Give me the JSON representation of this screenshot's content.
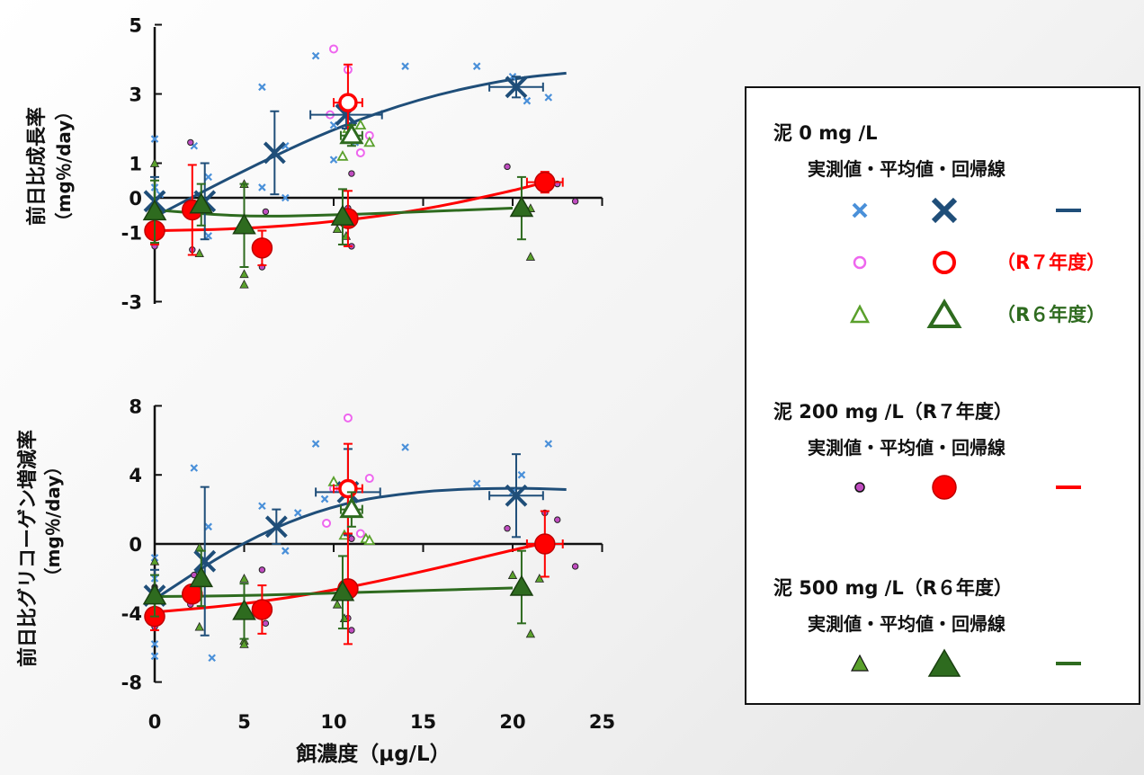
{
  "colors": {
    "blue": "#1f4e79",
    "blue_light": "#4a90d9",
    "red": "#ff0000",
    "red_dark": "#c00000",
    "pink": "#ee66ee",
    "green": "#2e6b1f",
    "green_light": "#5aa02c",
    "purple": "#c04cc0"
  },
  "chart_data": [
    {
      "type": "scatter",
      "title": "",
      "ylabel": "前日比成長率",
      "ylabel2": "（mg％/day）",
      "xlim": [
        0,
        25
      ],
      "ylim": [
        -3,
        5
      ],
      "yticks": [
        "5",
        "3",
        "1",
        "0",
        "-1",
        "-3"
      ],
      "ytick_values": [
        5,
        3,
        1,
        0,
        -1,
        -3
      ],
      "grid": false,
      "series": [
        {
          "name": "泥 0 mg /L 実測値",
          "marker": "x-small",
          "color": "#4a90d9",
          "points": [
            [
              0,
              1.7
            ],
            [
              0,
              0.3
            ],
            [
              0,
              -0.4
            ],
            [
              0.3,
              0.1
            ],
            [
              2.2,
              1.5
            ],
            [
              3,
              0.6
            ],
            [
              3,
              -1.1
            ],
            [
              6,
              3.2
            ],
            [
              6,
              0.3
            ],
            [
              7.3,
              1.5
            ],
            [
              7.3,
              0
            ],
            [
              9,
              4.1
            ],
            [
              10,
              1.1
            ],
            [
              10,
              2.1
            ],
            [
              11.2,
              1.6
            ],
            [
              14,
              3.8
            ],
            [
              18,
              3.8
            ],
            [
              20,
              3.5
            ],
            [
              20.8,
              2.8
            ],
            [
              22,
              2.9
            ]
          ]
        },
        {
          "name": "泥 0 mg /L 平均値",
          "marker": "x-large",
          "color": "#1f4e79",
          "points": [
            [
              0,
              -0.1
            ],
            [
              2.8,
              -0.1
            ],
            [
              6.7,
              1.3
            ],
            [
              10.7,
              2.4
            ],
            [
              20.2,
              3.2
            ]
          ],
          "xerr": [
            0,
            0,
            0,
            2,
            1.5
          ],
          "yerr": [
            0.7,
            1.1,
            1.2,
            0.4,
            0.3
          ]
        },
        {
          "name": "泥 0 mg /L 回帰線",
          "line": true,
          "color": "#1f4e79",
          "curve": [
            [
              0,
              -0.55
            ],
            [
              5,
              0.8
            ],
            [
              10,
              2
            ],
            [
              15,
              2.9
            ],
            [
              20,
              3.45
            ],
            [
              23,
              3.6
            ]
          ]
        },
        {
          "name": "泥 0 mg /L 実測値 R7",
          "marker": "o-small-open",
          "color": "#ee66ee",
          "points": [
            [
              9.8,
              2.4
            ],
            [
              10,
              4.3
            ],
            [
              10.8,
              3.7
            ],
            [
              11.5,
              1.3
            ],
            [
              12,
              1.8
            ]
          ]
        },
        {
          "name": "泥 0 mg /L 平均値 R7",
          "marker": "o-large-open",
          "color": "#ff0000",
          "points": [
            [
              10.8,
              2.75
            ]
          ],
          "xerr": [
            0.8
          ],
          "yerr": [
            1.1
          ]
        },
        {
          "name": "泥 0 mg /L 実測値 R6",
          "marker": "tri-small-open",
          "color": "#5aa02c",
          "points": [
            [
              10.5,
              1.2
            ],
            [
              10.8,
              2
            ],
            [
              11.5,
              2.1
            ],
            [
              12,
              1.6
            ]
          ]
        },
        {
          "name": "泥 0 mg /L 平均値 R6",
          "marker": "tri-large-open",
          "color": "#2e6b1f",
          "points": [
            [
              11,
              1.8
            ]
          ],
          "xerr": [
            0.6
          ],
          "yerr": [
            0.3
          ]
        },
        {
          "name": "泥 200 mg /L 実測値",
          "marker": "dot-small",
          "color": "#c04cc0",
          "points": [
            [
              0,
              -1.4
            ],
            [
              0,
              -0.8
            ],
            [
              2,
              1.6
            ],
            [
              2.1,
              -1.5
            ],
            [
              6,
              -1.6
            ],
            [
              6,
              -2
            ],
            [
              6.2,
              -0.4
            ],
            [
              10.8,
              -0.3
            ],
            [
              11,
              0.7
            ],
            [
              11,
              -1.4
            ],
            [
              19.7,
              0.9
            ],
            [
              21.8,
              0.4
            ],
            [
              22.5,
              0.4
            ],
            [
              23.5,
              -0.1
            ]
          ]
        },
        {
          "name": "泥 200 mg /L 平均値",
          "marker": "dot-large",
          "color": "#ff0000",
          "points": [
            [
              0,
              -0.95
            ],
            [
              2.1,
              -0.35
            ],
            [
              6,
              -1.45
            ],
            [
              10.8,
              -0.6
            ],
            [
              21.8,
              0.45
            ]
          ],
          "xerr": [
            0,
            0,
            0,
            0,
            1
          ],
          "yerr": [
            0.4,
            1.3,
            0.5,
            0.8,
            0.3
          ]
        },
        {
          "name": "泥 200 mg /L 回帰線",
          "line": true,
          "color": "#ff0000",
          "curve": [
            [
              0,
              -0.95
            ],
            [
              5,
              -0.9
            ],
            [
              10,
              -0.7
            ],
            [
              15,
              -0.35
            ],
            [
              20,
              0.2
            ],
            [
              21.8,
              0.45
            ]
          ]
        },
        {
          "name": "泥 500 mg /L 実測値",
          "marker": "tri-small",
          "color": "#5aa02c",
          "points": [
            [
              0,
              1
            ],
            [
              2.5,
              -1.6
            ],
            [
              5,
              0.4
            ],
            [
              5,
              -2.2
            ],
            [
              5,
              -2.5
            ],
            [
              10.2,
              -0.9
            ],
            [
              10.7,
              -1.1
            ],
            [
              20.5,
              -0.2
            ],
            [
              21,
              -0.3
            ],
            [
              21,
              -1.7
            ]
          ]
        },
        {
          "name": "泥 500 mg /L 平均値",
          "marker": "tri-large",
          "color": "#2e6b1f",
          "points": [
            [
              0,
              -0.4
            ],
            [
              2.6,
              -0.2
            ],
            [
              5,
              -0.8
            ],
            [
              10.5,
              -0.55
            ],
            [
              20.5,
              -0.3
            ]
          ],
          "xerr": [
            0,
            0,
            0,
            0,
            0
          ],
          "yerr": [
            0.9,
            0.6,
            1.2,
            0.8,
            0.9
          ]
        },
        {
          "name": "泥 500 mg /L 回帰線",
          "line": true,
          "color": "#2e6b1f",
          "curve": [
            [
              0,
              -0.35
            ],
            [
              5,
              -0.55
            ],
            [
              10,
              -0.5
            ],
            [
              15,
              -0.4
            ],
            [
              20,
              -0.3
            ]
          ]
        }
      ]
    },
    {
      "type": "scatter",
      "title": "",
      "ylabel": "前日比グリコーゲン増減率",
      "ylabel2": "（mg％/day）",
      "xlabel": "餌濃度（μg/L）",
      "xlim": [
        0,
        25
      ],
      "ylim": [
        -8,
        8
      ],
      "xticks": [
        "0",
        "5",
        "10",
        "15",
        "20",
        "25"
      ],
      "xtick_values": [
        0,
        5,
        10,
        15,
        20,
        25
      ],
      "yticks": [
        "8",
        "4",
        "0",
        "-4",
        "-8"
      ],
      "ytick_values": [
        8,
        4,
        0,
        -4,
        -8
      ],
      "grid": false,
      "series": [
        {
          "name": "泥 0 mg /L 実測値",
          "marker": "x-small",
          "color": "#4a90d9",
          "points": [
            [
              0,
              -0.8
            ],
            [
              0,
              -2
            ],
            [
              0,
              -5.8
            ],
            [
              0,
              -6.5
            ],
            [
              2.2,
              4.4
            ],
            [
              3,
              1
            ],
            [
              3.2,
              -6.6
            ],
            [
              6,
              2.2
            ],
            [
              7.3,
              -0.4
            ],
            [
              8,
              1.8
            ],
            [
              9,
              5.8
            ],
            [
              9.5,
              2.6
            ],
            [
              14,
              5.6
            ],
            [
              18,
              3.5
            ],
            [
              20,
              3
            ],
            [
              20.5,
              4
            ],
            [
              22,
              5.8
            ]
          ]
        },
        {
          "name": "泥 0 mg /L 平均値",
          "marker": "x-large",
          "color": "#1f4e79",
          "points": [
            [
              0,
              -3
            ],
            [
              2.8,
              -1
            ],
            [
              6.8,
              1
            ],
            [
              10.8,
              3
            ],
            [
              20.2,
              2.8
            ]
          ],
          "xerr": [
            0,
            0,
            0,
            1.8,
            1.5
          ],
          "yerr": [
            1.5,
            4.3,
            1,
            2.5,
            2.4
          ]
        },
        {
          "name": "泥 0 mg /L 回帰線",
          "line": true,
          "color": "#1f4e79",
          "curve": [
            [
              0,
              -3.2
            ],
            [
              5,
              0.2
            ],
            [
              10,
              2.3
            ],
            [
              15,
              3.1
            ],
            [
              20,
              3.25
            ],
            [
              23,
              3.15
            ]
          ]
        },
        {
          "name": "泥 0 mg /L 実測値 R7",
          "marker": "o-small-open",
          "color": "#ee66ee",
          "points": [
            [
              9.6,
              1.2
            ],
            [
              10,
              3.2
            ],
            [
              10.8,
              7.3
            ],
            [
              11.5,
              0.6
            ],
            [
              12,
              3.8
            ]
          ]
        },
        {
          "name": "泥 0 mg /L 平均値 R7",
          "marker": "o-large-open",
          "color": "#ff0000",
          "points": [
            [
              10.8,
              3.2
            ]
          ],
          "xerr": [
            0.8
          ],
          "yerr": [
            2.6
          ]
        },
        {
          "name": "泥 0 mg /L 実測値 R6",
          "marker": "tri-small-open",
          "color": "#5aa02c",
          "points": [
            [
              10,
              3.6
            ],
            [
              10.6,
              0.5
            ],
            [
              11.8,
              0.3
            ],
            [
              12,
              0.2
            ]
          ]
        },
        {
          "name": "泥 0 mg /L 平均値 R6",
          "marker": "tri-large-open",
          "color": "#2e6b1f",
          "points": [
            [
              11,
              2
            ]
          ],
          "xerr": [
            0.6
          ],
          "yerr": [
            1
          ]
        },
        {
          "name": "泥 200 mg /L 実測値",
          "marker": "dot-small",
          "color": "#c04cc0",
          "points": [
            [
              0,
              -4.8
            ],
            [
              0,
              -2.5
            ],
            [
              2,
              -3.5
            ],
            [
              2.2,
              -1.8
            ],
            [
              6,
              -1.5
            ],
            [
              6,
              -3.8
            ],
            [
              6.2,
              -4.6
            ],
            [
              10.8,
              -4.3
            ],
            [
              11,
              -5
            ],
            [
              11,
              0.3
            ],
            [
              19.7,
              0.9
            ],
            [
              21.8,
              1.8
            ],
            [
              22.5,
              1.4
            ],
            [
              23.5,
              -1.3
            ]
          ]
        },
        {
          "name": "泥 200 mg /L 平均値",
          "marker": "dot-large",
          "color": "#ff0000",
          "points": [
            [
              0,
              -4.2
            ],
            [
              2.1,
              -2.9
            ],
            [
              6,
              -3.8
            ],
            [
              10.8,
              -2.6
            ],
            [
              21.8,
              0
            ]
          ],
          "xerr": [
            0,
            0,
            0,
            0,
            1
          ],
          "yerr": [
            0.8,
            0.5,
            1.4,
            3.2,
            1.9
          ]
        },
        {
          "name": "泥 200 mg /L 回帰線",
          "line": true,
          "color": "#ff0000",
          "curve": [
            [
              0,
              -3.95
            ],
            [
              5,
              -3.5
            ],
            [
              10,
              -2.7
            ],
            [
              15,
              -1.6
            ],
            [
              20,
              -0.35
            ],
            [
              21.8,
              0.05
            ]
          ]
        },
        {
          "name": "泥 500 mg /L 実測値",
          "marker": "tri-small",
          "color": "#5aa02c",
          "points": [
            [
              0,
              -1
            ],
            [
              0,
              -2.5
            ],
            [
              2.5,
              -0.2
            ],
            [
              2.5,
              -4.8
            ],
            [
              5,
              -2
            ],
            [
              5,
              -5.6
            ],
            [
              5,
              -5.8
            ],
            [
              10.2,
              -3.5
            ],
            [
              10.6,
              -4.3
            ],
            [
              20,
              -1.8
            ],
            [
              21,
              -5.2
            ],
            [
              21.5,
              -2
            ]
          ]
        },
        {
          "name": "泥 500 mg /L 平均値",
          "marker": "tri-large",
          "color": "#2e6b1f",
          "points": [
            [
              0,
              -3
            ],
            [
              2.6,
              -2
            ],
            [
              5,
              -3.9
            ],
            [
              10.5,
              -2.8
            ],
            [
              20.5,
              -2.5
            ]
          ],
          "xerr": [
            0,
            0,
            0,
            0,
            0
          ],
          "yerr": [
            1.2,
            1.6,
            1.6,
            2.1,
            2.1
          ]
        },
        {
          "name": "泥 500 mg /L 回帰線",
          "line": true,
          "color": "#2e6b1f",
          "curve": [
            [
              0,
              -3.05
            ],
            [
              5,
              -3
            ],
            [
              10,
              -2.85
            ],
            [
              15,
              -2.7
            ],
            [
              20,
              -2.55
            ]
          ]
        }
      ]
    }
  ],
  "legend": {
    "group1": {
      "title": "泥 0 mg /L",
      "sub": "実測値・平均値・回帰線",
      "note_r7": "（R７年度）",
      "note_r6": "（R６年度）"
    },
    "group2": {
      "title": "泥 200 mg /L（R７年度）",
      "sub": "実測値・平均値・回帰線"
    },
    "group3": {
      "title": "泥 500 mg /L（R６年度）",
      "sub": "実測値・平均値・回帰線"
    }
  }
}
